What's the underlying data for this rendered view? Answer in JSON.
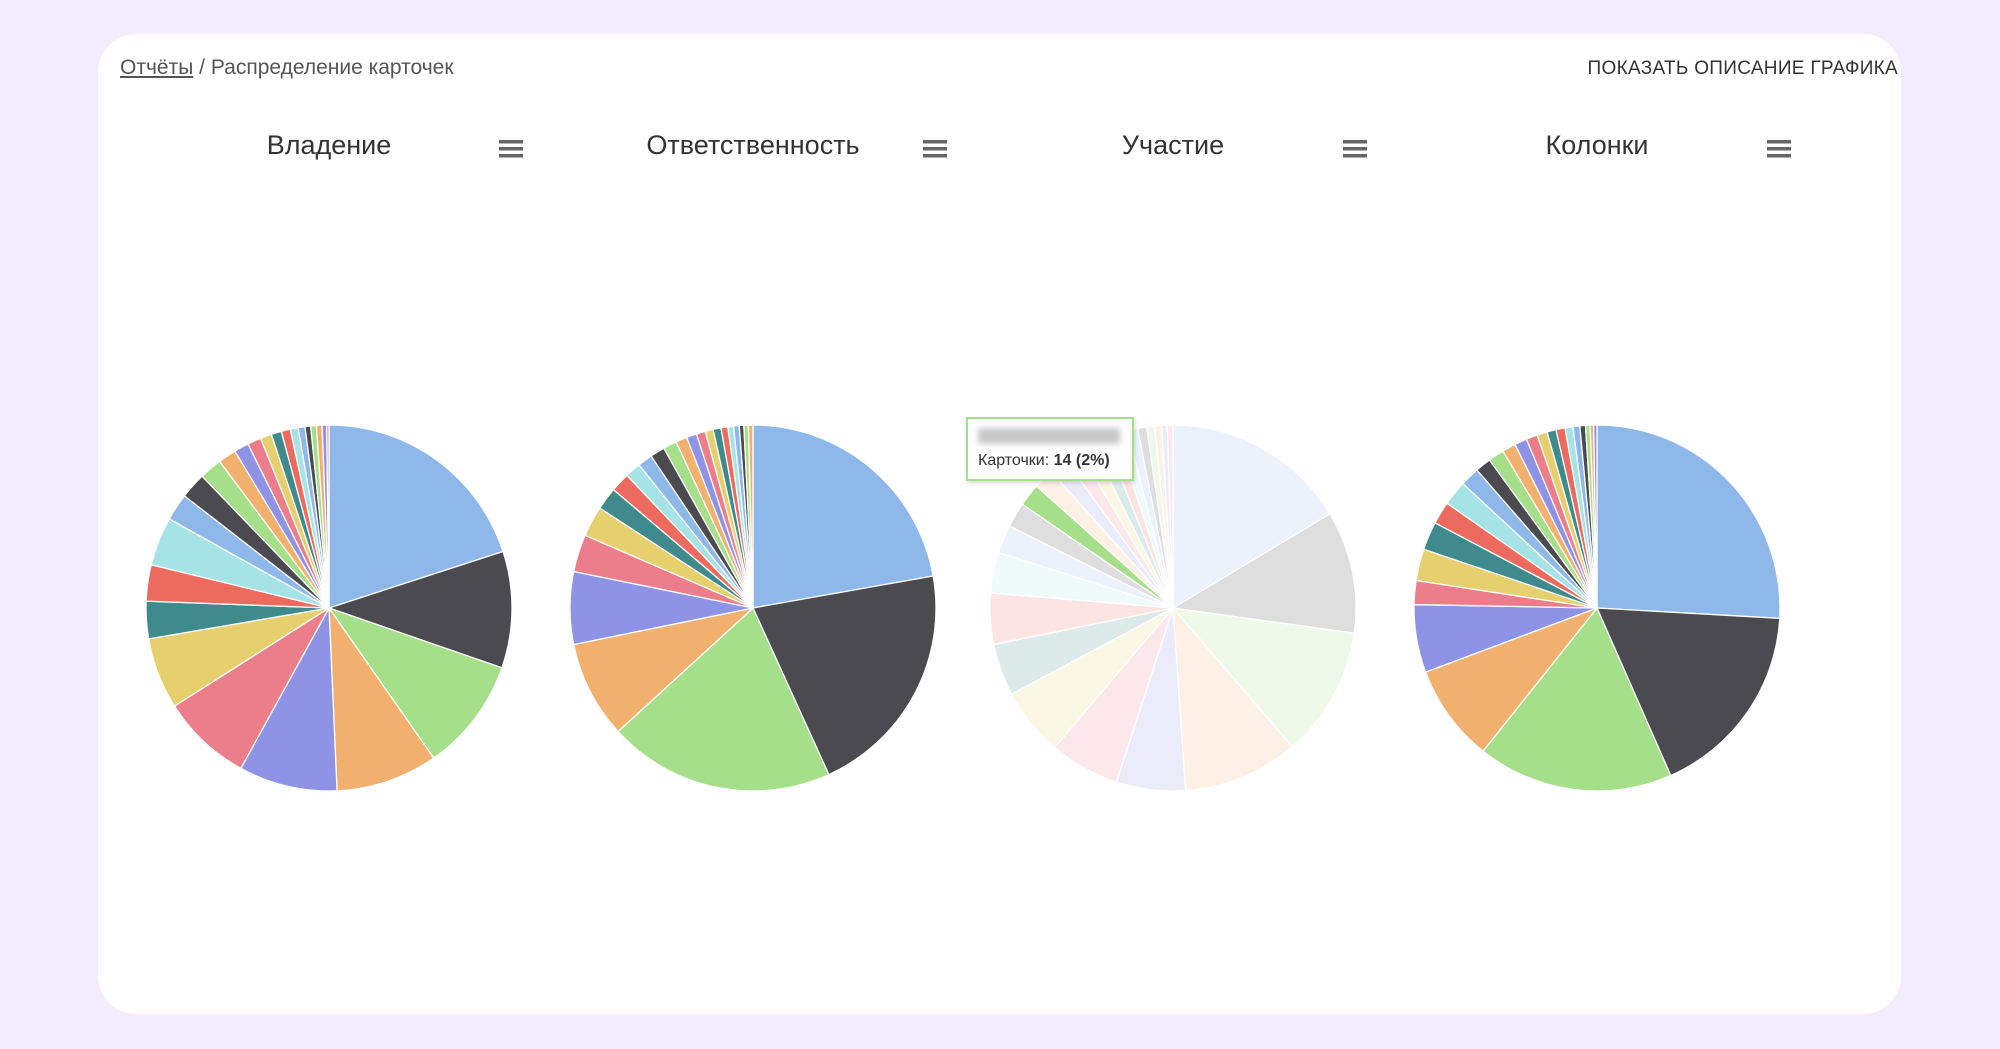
{
  "breadcrumb": {
    "link": "Отчёты",
    "separator": "/",
    "current": "Распределение карточек"
  },
  "action_button": "ПОКАЗАТЬ ОПИСАНИЕ ГРАФИКА",
  "tooltip": {
    "label": "Карточки:",
    "value": "14 (2%)"
  },
  "chart_data": [
    {
      "type": "pie",
      "title": "Владение",
      "colors": [
        "#8fb8ea",
        "#4a4a50",
        "#a5df8a",
        "#f2b06e",
        "#8f93e6",
        "#ec7d8a",
        "#e6d06d",
        "#3f8a8c",
        "#ec6b5e",
        "#a6e3e6"
      ],
      "values": [
        20,
        10.3,
        10,
        9,
        8.7,
        8,
        6.3,
        3.3,
        3.2,
        4.3,
        2.4,
        2.3,
        2,
        1.6,
        1.3,
        1.2,
        1.0,
        0.9,
        0.8,
        0.7,
        0.6,
        0.5,
        0.5,
        0.5,
        0.4,
        0.2
      ]
    },
    {
      "type": "pie",
      "title": "Ответственность",
      "colors": [
        "#8fb8ea",
        "#4a4a50",
        "#a5df8a",
        "#f2b06e",
        "#8f93e6",
        "#ec7d8a",
        "#e6d06d",
        "#3f8a8c",
        "#ec6b5e",
        "#a6e3e6"
      ],
      "values": [
        22.2,
        21,
        20,
        8.6,
        6.4,
        3.3,
        2.7,
        2,
        1.7,
        1.4,
        1.3,
        1.3,
        1.2,
        1.0,
        0.9,
        0.8,
        0.7,
        0.7,
        0.6,
        0.5,
        0.5,
        0.4,
        0.4,
        0.4
      ]
    },
    {
      "type": "pie",
      "title": "Участие",
      "hovered_slice": 12,
      "colors": [
        "#8fb8ea",
        "#4a4a50",
        "#a5df8a",
        "#f2b06e",
        "#8f93e6",
        "#ec7d8a",
        "#e6d06d",
        "#3f8a8c",
        "#ec6b5e",
        "#a6e3e6"
      ],
      "values": [
        16.4,
        10.8,
        11.5,
        10.2,
        6.1,
        6.2,
        6,
        4.6,
        4.5,
        3.6,
        2.5,
        2.2,
        2,
        1.8,
        1.6,
        1.4,
        1.3,
        1.2,
        1.1,
        1.0,
        0.9,
        0.8,
        0.7,
        0.6,
        0.5,
        0.5
      ]
    },
    {
      "type": "pie",
      "title": "Колонки",
      "colors": [
        "#8fb8ea",
        "#4a4a50",
        "#a5df8a",
        "#f2b06e",
        "#8f93e6",
        "#ec7d8a",
        "#e6d06d",
        "#3f8a8c",
        "#ec6b5e",
        "#a6e3e6"
      ],
      "values": [
        25.9,
        17.5,
        17.3,
        8.6,
        6,
        2.1,
        2.8,
        2.5,
        2,
        2.2,
        1.7,
        1.4,
        1.4,
        1.2,
        1.1,
        1.0,
        0.9,
        0.8,
        0.8,
        0.7,
        0.6,
        0.5,
        0.4,
        0.3,
        0.3
      ]
    }
  ]
}
